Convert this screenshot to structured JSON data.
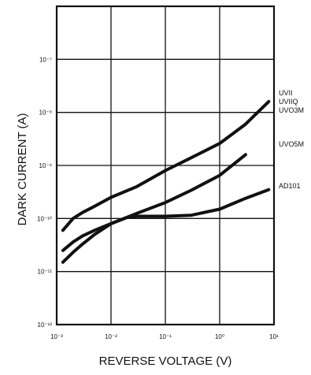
{
  "chart_data": {
    "type": "line",
    "xlabel": "REVERSE VOLTAGE (V)",
    "ylabel": "DARK CURRENT (A)",
    "x_scale": "log",
    "y_scale": "log",
    "xlim": [
      0.001,
      10
    ],
    "ylim": [
      1e-12,
      1e-06
    ],
    "grid": true,
    "x_ticks": [
      {
        "value": 0.001,
        "label": "10⁻³"
      },
      {
        "value": 0.01,
        "label": "10⁻²"
      },
      {
        "value": 0.1,
        "label": "10⁻¹"
      },
      {
        "value": 1,
        "label": "10⁰"
      },
      {
        "value": 10,
        "label": "10¹"
      }
    ],
    "y_ticks": [
      {
        "value": 1e-12,
        "label": "10⁻¹²"
      },
      {
        "value": 1e-11,
        "label": "10⁻¹¹"
      },
      {
        "value": 1e-10,
        "label": "10⁻¹⁰"
      },
      {
        "value": 1e-09,
        "label": "10⁻⁹"
      },
      {
        "value": 1e-08,
        "label": "10⁻⁸"
      },
      {
        "value": 1e-07,
        "label": "10⁻⁷"
      }
    ],
    "series": [
      {
        "name": "UVII UVIIQ UVO3M",
        "label_lines": [
          "UVII",
          "UVIIQ",
          "UVO3M"
        ],
        "x": [
          0.0013,
          0.002,
          0.003,
          0.005,
          0.01,
          0.03,
          0.1,
          0.3,
          1,
          3,
          8
        ],
        "y": [
          6e-11,
          1e-10,
          1.3e-10,
          1.7e-10,
          2.5e-10,
          4e-10,
          8e-10,
          1.4e-09,
          2.6e-09,
          6e-09,
          1.6e-08
        ]
      },
      {
        "name": "UVO5M",
        "label_lines": [
          "UVO5M"
        ],
        "x": [
          0.0013,
          0.002,
          0.003,
          0.005,
          0.01,
          0.03,
          0.1,
          0.3,
          1,
          3
        ],
        "y": [
          2.5e-11,
          3.6e-11,
          4.7e-11,
          6e-11,
          8e-11,
          1.25e-10,
          2e-10,
          3.4e-10,
          6.5e-10,
          1.6e-09
        ]
      },
      {
        "name": "AD101",
        "label_lines": [
          "AD101"
        ],
        "x": [
          0.0013,
          0.002,
          0.003,
          0.005,
          0.01,
          0.02,
          0.03,
          0.05,
          0.1,
          0.3,
          1,
          3,
          8
        ],
        "y": [
          1.5e-11,
          2.3e-11,
          3.3e-11,
          5e-11,
          8e-11,
          1.05e-10,
          1.1e-10,
          1.1e-10,
          1.1e-10,
          1.15e-10,
          1.5e-10,
          2.4e-10,
          3.5e-10
        ]
      }
    ]
  }
}
